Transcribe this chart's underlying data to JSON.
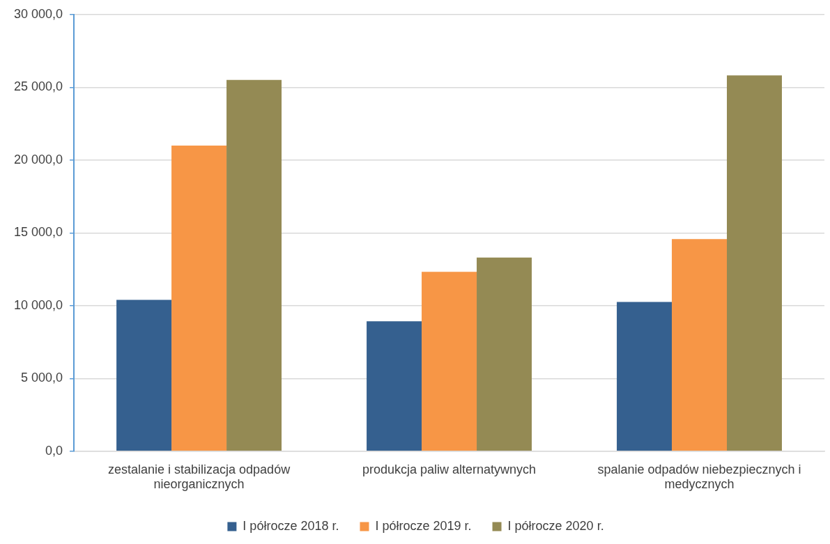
{
  "chart_data": {
    "type": "bar",
    "categories": [
      "zestalanie i stabilizacja odpadów nieorganicznych",
      "produkcja paliw alternatywnych",
      "spalanie odpadów niebezpiecznych i medycznych"
    ],
    "series": [
      {
        "name": "I półrocze 2018 r.",
        "color": "#35608f",
        "values": [
          10400,
          8930,
          10250
        ]
      },
      {
        "name": "I półrocze 2019 r.",
        "color": "#f79646",
        "values": [
          21000,
          12320,
          14570
        ]
      },
      {
        "name": "I półrocze 2020 r.",
        "color": "#948a54",
        "values": [
          25500,
          13300,
          25810
        ]
      }
    ],
    "ylim": [
      0,
      30000
    ],
    "yticks": [
      {
        "value": 0,
        "label": "0,0"
      },
      {
        "value": 5000,
        "label": "5 000,0"
      },
      {
        "value": 10000,
        "label": "10 000,0"
      },
      {
        "value": 15000,
        "label": "15 000,0"
      },
      {
        "value": 20000,
        "label": "20 000,0"
      },
      {
        "value": 25000,
        "label": "25 000,0"
      },
      {
        "value": 30000,
        "label": "30 000,0"
      }
    ],
    "grid": "y",
    "legend": "bottom"
  }
}
